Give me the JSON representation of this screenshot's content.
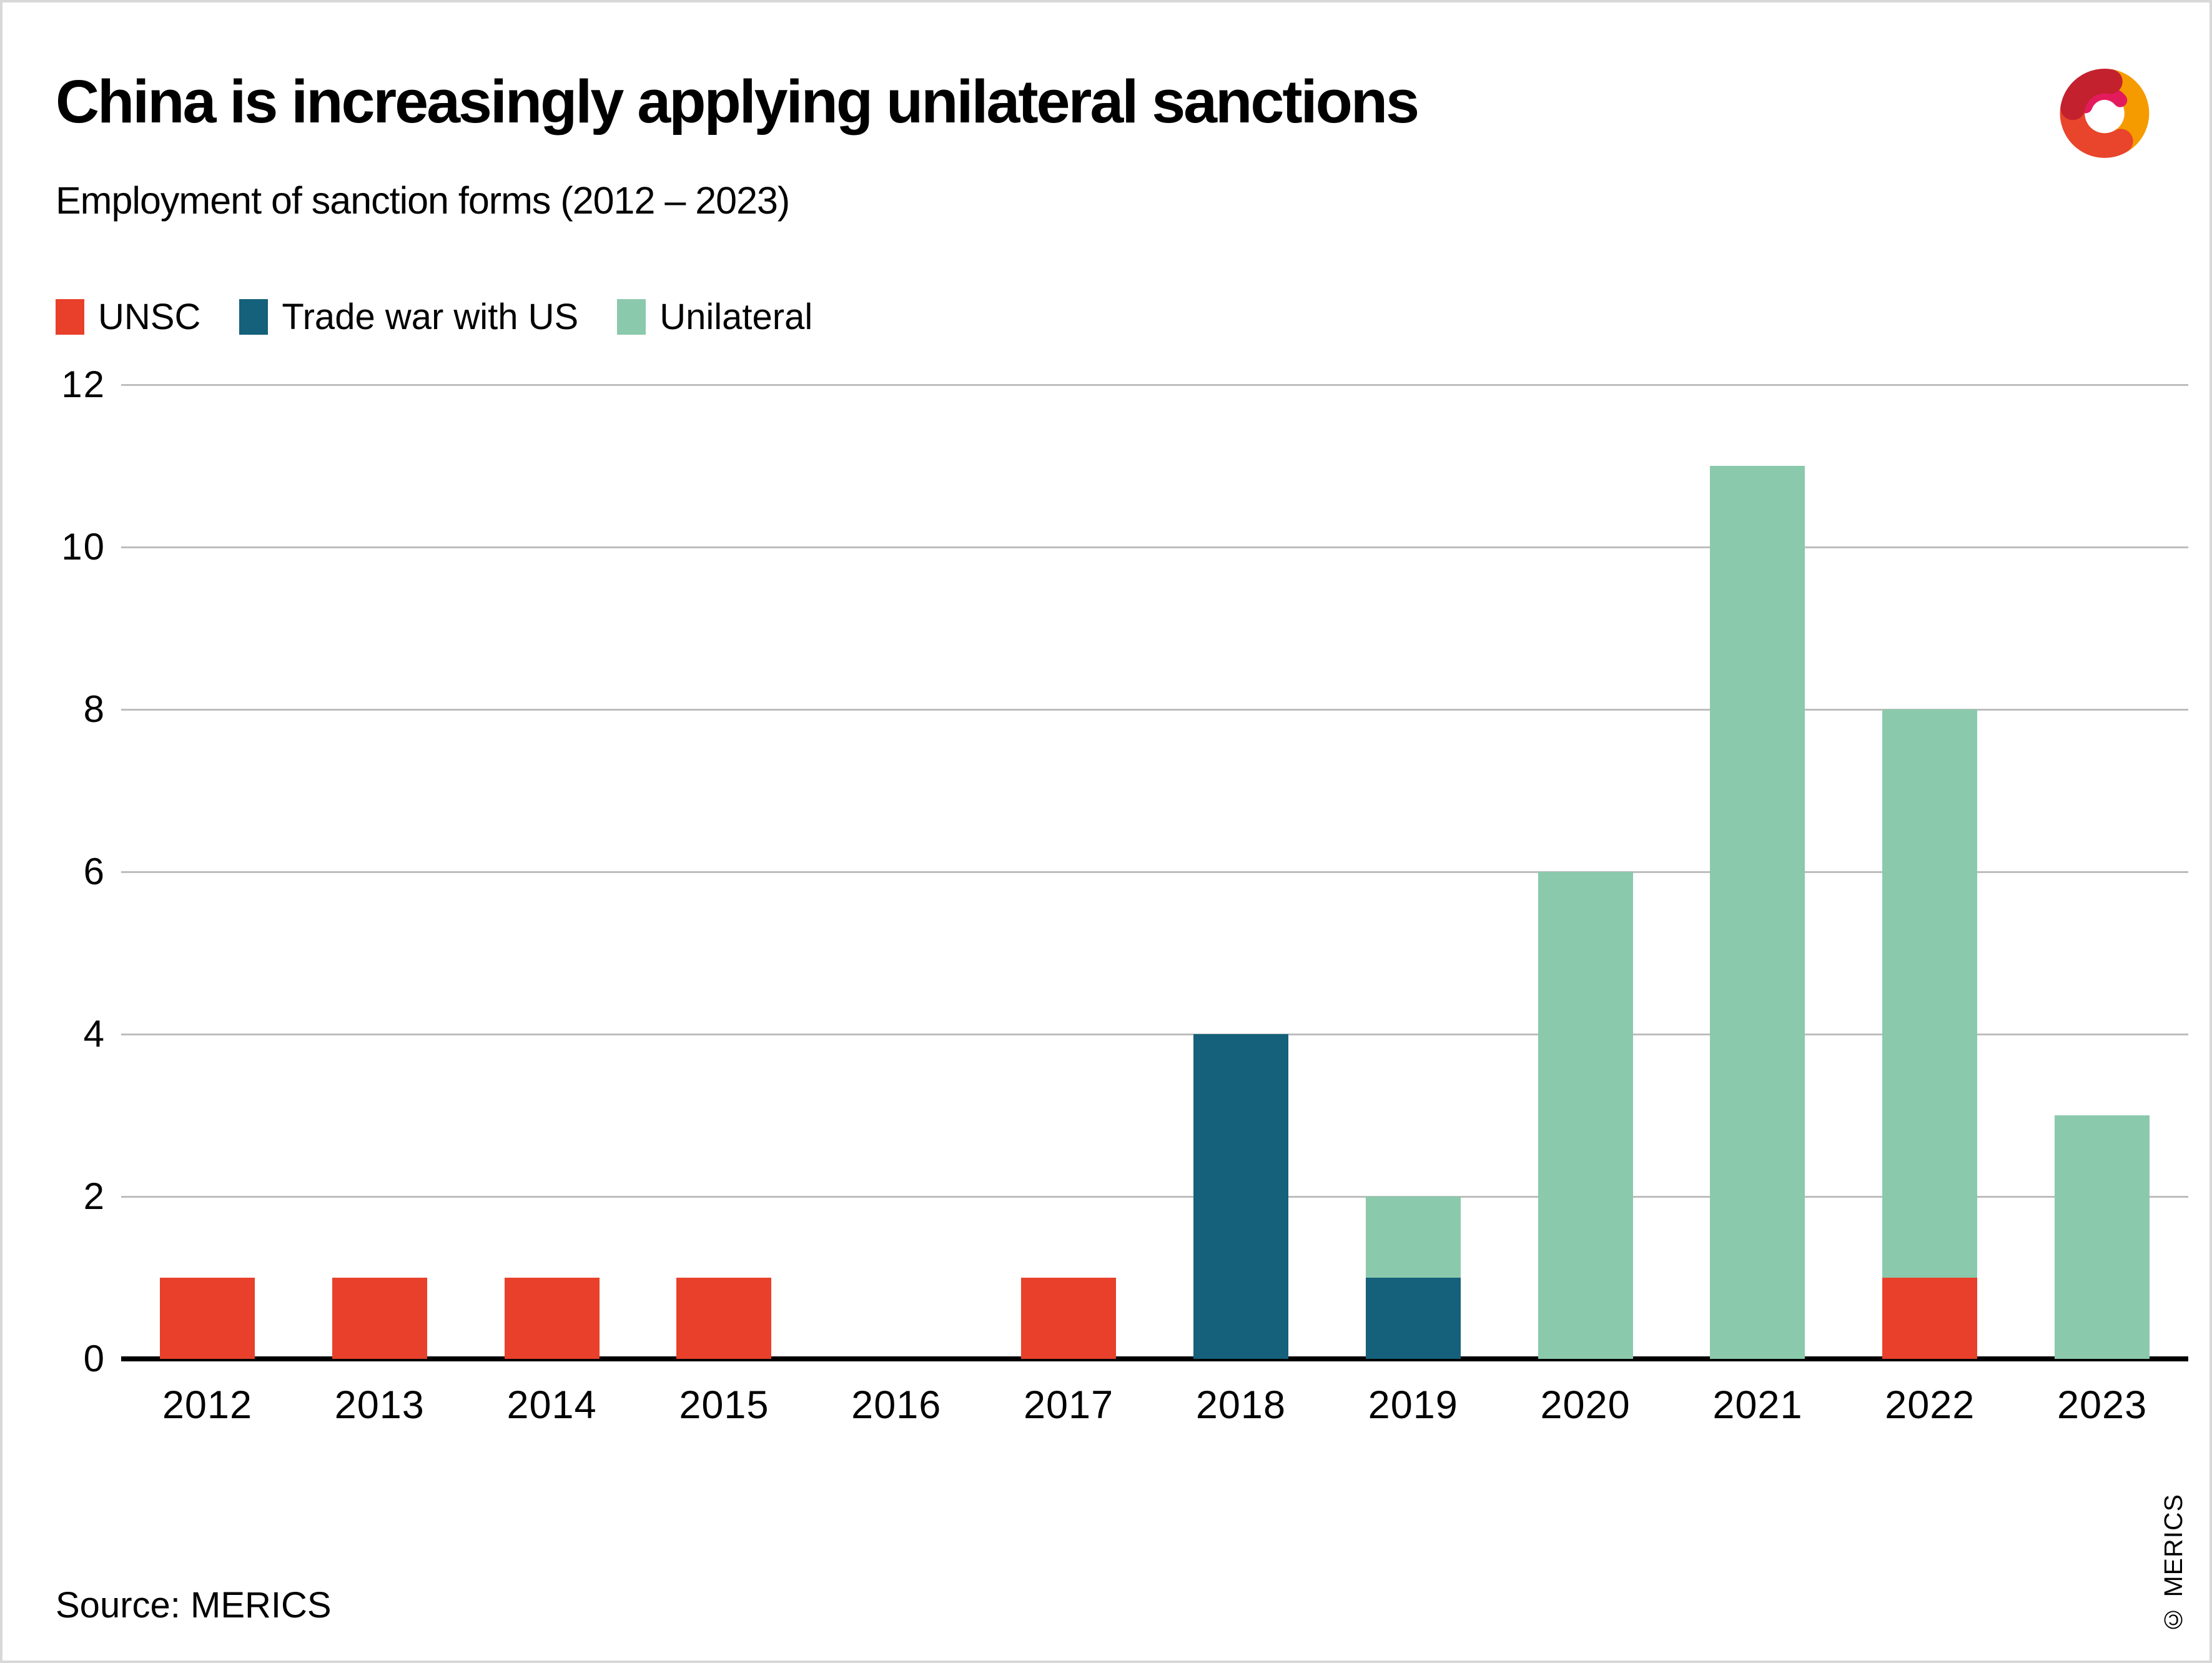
{
  "header": {
    "title": "China is increasingly applying unilateral sanctions",
    "subtitle": "Employment of sanction forms (2012 – 2023)"
  },
  "chart_data": {
    "type": "bar",
    "stacked": true,
    "title": "China is increasingly applying unilateral sanctions",
    "subtitle": "Employment of sanction forms (2012 – 2023)",
    "categories": [
      "2012",
      "2013",
      "2014",
      "2015",
      "2016",
      "2017",
      "2018",
      "2019",
      "2020",
      "2021",
      "2022",
      "2023"
    ],
    "series": [
      {
        "name": "UNSC",
        "color": "#e8402b",
        "values": [
          1,
          1,
          1,
          1,
          0,
          1,
          0,
          0,
          0,
          0,
          1,
          0
        ]
      },
      {
        "name": "Trade war with US",
        "color": "#15607a",
        "values": [
          0,
          0,
          0,
          0,
          0,
          0,
          4,
          1,
          0,
          0,
          0,
          0
        ]
      },
      {
        "name": "Unilateral",
        "color": "#8bc9ac",
        "values": [
          0,
          0,
          0,
          0,
          0,
          0,
          0,
          1,
          6,
          11,
          7,
          3
        ]
      }
    ],
    "totals": [
      1,
      1,
      1,
      1,
      0,
      1,
      4,
      2,
      6,
      11,
      8,
      3
    ],
    "xlabel": "",
    "ylabel": "",
    "ylim": [
      0,
      12
    ],
    "yticks": [
      0,
      2,
      4,
      6,
      8,
      10,
      12
    ],
    "grid": true,
    "grid_color": "#bdbdbd",
    "axis_color": "#000000",
    "legend_position": "top-left"
  },
  "footer": {
    "source": "Source: MERICS",
    "copyright": "© MERICS"
  },
  "logo": {
    "name": "merics-logo",
    "colors": {
      "orange": "#f59b00",
      "red": "#e8452c",
      "magenta": "#e31b5d",
      "darkred": "#c4212f"
    }
  }
}
